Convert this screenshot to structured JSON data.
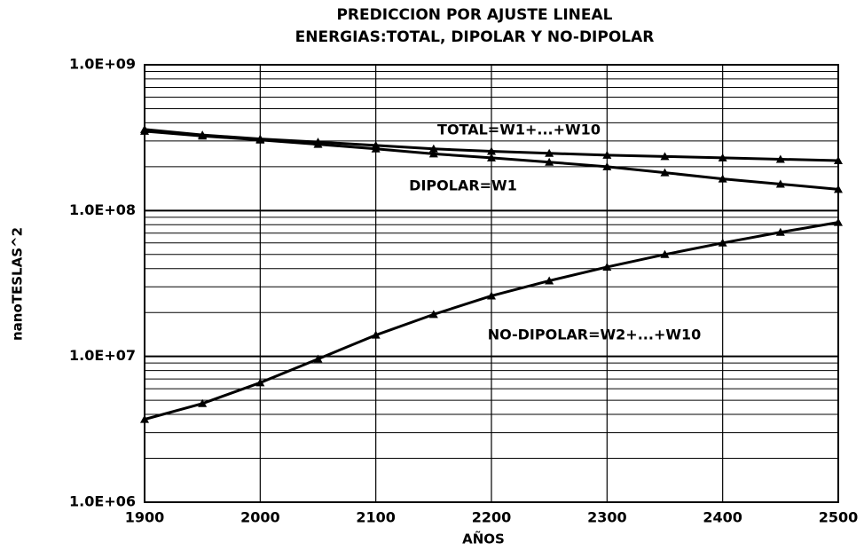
{
  "chart_data": {
    "type": "line",
    "title": [
      "PREDICCION POR AJUSTE LINEAL",
      "ENERGIAS:TOTAL, DIPOLAR Y NO-DIPOLAR"
    ],
    "x_label": "AÑOS",
    "y_label": "nanoTESLAS^2",
    "x": [
      1900,
      1950,
      2000,
      2050,
      2100,
      2150,
      2200,
      2250,
      2300,
      2350,
      2400,
      2450,
      2500
    ],
    "series": [
      {
        "name": "TOTAL=W1+...+W10",
        "color": "#000000",
        "values": [
          360000000,
          330000000,
          310000000,
          295000000,
          280000000,
          265000000,
          255000000,
          247000000,
          240000000,
          235000000,
          230000000,
          225000000,
          220000000
        ]
      },
      {
        "name": "DIPOLAR=W1",
        "color": "#000000",
        "values": [
          350000000,
          325000000,
          305000000,
          285000000,
          265000000,
          245000000,
          230000000,
          215000000,
          200000000,
          182000000,
          165000000,
          152000000,
          140000000
        ]
      },
      {
        "name": "NO-DIPOLAR=W2+...+W10",
        "color": "#000000",
        "values": [
          3700000,
          4750000,
          6600000,
          9600000,
          14000000,
          19400000,
          26000000,
          33000000,
          41000000,
          50000000,
          60000000,
          71000000,
          83000000
        ]
      }
    ],
    "xlim": [
      1900,
      2500
    ],
    "xticks": [
      1900,
      2000,
      2100,
      2200,
      2300,
      2400,
      2500
    ],
    "ylim": [
      1000000,
      1000000000
    ],
    "log_y": true,
    "yticks": [
      {
        "value": 1000000,
        "label": "1.0E+06"
      },
      {
        "value": 10000000,
        "label": "1.0E+07"
      },
      {
        "value": 100000000,
        "label": "1.0E+08"
      },
      {
        "value": 1000000000,
        "label": "1.0E+09"
      }
    ],
    "grid": true,
    "minor_grid": true
  }
}
